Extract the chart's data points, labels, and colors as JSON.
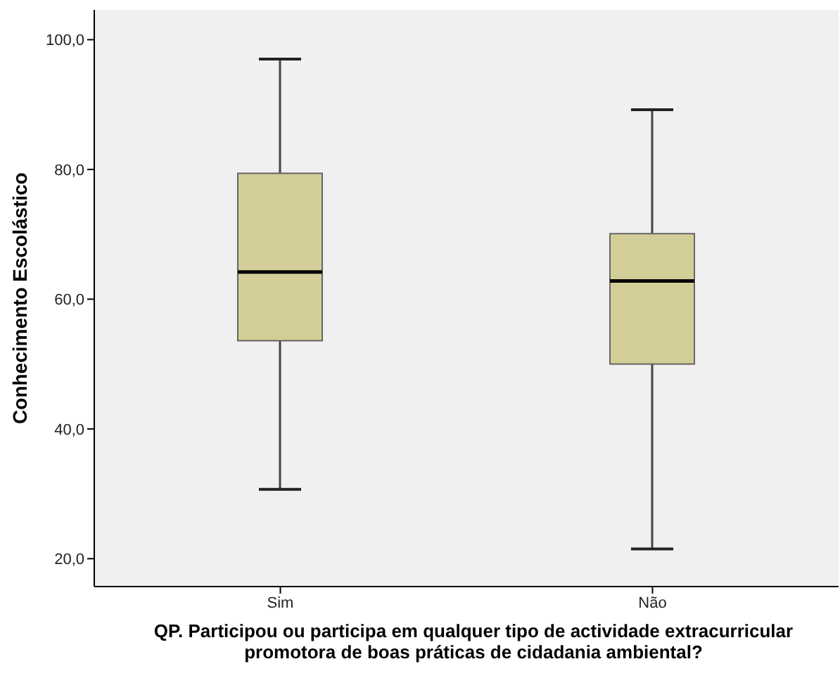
{
  "chart_data": {
    "type": "box",
    "xlabel": "QP. Participou ou participa em qualquer tipo de actividade extracurricular\npromotora de boas práticas de cidadania ambiental?",
    "ylabel": "Conhecimento Escolástico",
    "categories": [
      "Sim",
      "Não"
    ],
    "boxes": [
      {
        "low": 30.7,
        "q1": 53.6,
        "median": 64.2,
        "q3": 79.4,
        "high": 97.0
      },
      {
        "low": 21.5,
        "q1": 50.0,
        "median": 62.8,
        "q3": 70.1,
        "high": 89.2
      }
    ],
    "color": "#d3ce97",
    "ylim": [
      15.7,
      104.6
    ],
    "yticks": [
      {
        "value": 20,
        "label": "20,0"
      },
      {
        "value": 40,
        "label": "40,0"
      },
      {
        "value": 60,
        "label": "60,0"
      },
      {
        "value": 80,
        "label": "80,0"
      },
      {
        "value": 100,
        "label": "100,0"
      }
    ]
  }
}
